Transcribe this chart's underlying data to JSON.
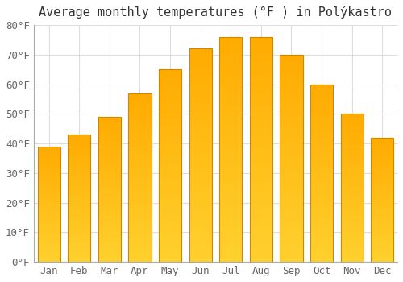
{
  "title": "Average monthly temperatures (°F ) in Polýkastro",
  "months": [
    "Jan",
    "Feb",
    "Mar",
    "Apr",
    "May",
    "Jun",
    "Jul",
    "Aug",
    "Sep",
    "Oct",
    "Nov",
    "Dec"
  ],
  "values": [
    39,
    43,
    49,
    57,
    65,
    72,
    76,
    76,
    70,
    60,
    50,
    42
  ],
  "ylim": [
    0,
    80
  ],
  "yticks": [
    0,
    10,
    20,
    30,
    40,
    50,
    60,
    70,
    80
  ],
  "background_color": "#ffffff",
  "plot_bg_color": "#ffffff",
  "grid_color": "#dddddd",
  "bar_color_bottom": "#FFAA00",
  "bar_color_top": "#FFD04A",
  "bar_edge_color": "#CC8800",
  "title_fontsize": 11,
  "tick_fontsize": 9,
  "bar_width": 0.75
}
